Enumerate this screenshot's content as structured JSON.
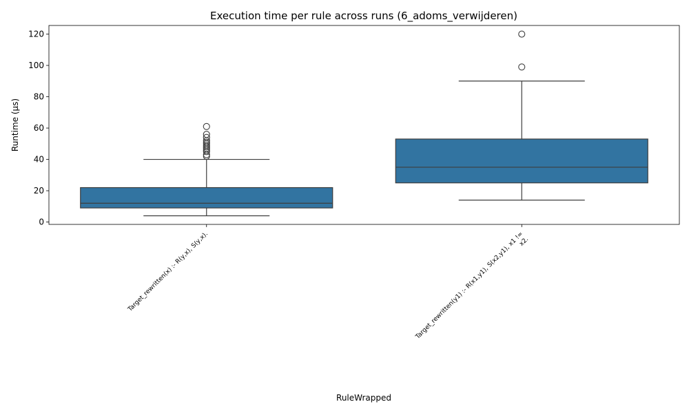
{
  "chart_data": {
    "type": "box",
    "title": "Execution time per rule across runs (6_adoms_verwijderen)",
    "xlabel": "RuleWrapped",
    "ylabel": "Runtime (µs)",
    "ylim": [
      -1.5,
      125.5
    ],
    "yticks": [
      0,
      20,
      40,
      60,
      80,
      100,
      120
    ],
    "box_color": "#3274a1",
    "line_color": "#3d3d3d",
    "categories": [
      {
        "label_lines": [
          "Target_rewritten(x) :-     R(y,x),    S(y,x)."
        ],
        "whisker_low": 4,
        "q1": 9,
        "median": 12,
        "q3": 22,
        "whisker_high": 40,
        "outliers": [
          42,
          43,
          45,
          46,
          47,
          48,
          49,
          50,
          51,
          52,
          54,
          56,
          61
        ]
      },
      {
        "label_lines": [
          "Target_rewritten(y1) :-     R(x1,y1),    S(x2,y1),    x1 !=",
          "x2."
        ],
        "whisker_low": 14,
        "q1": 25,
        "median": 35,
        "q3": 53,
        "whisker_high": 90,
        "outliers": [
          99,
          120
        ]
      }
    ]
  }
}
